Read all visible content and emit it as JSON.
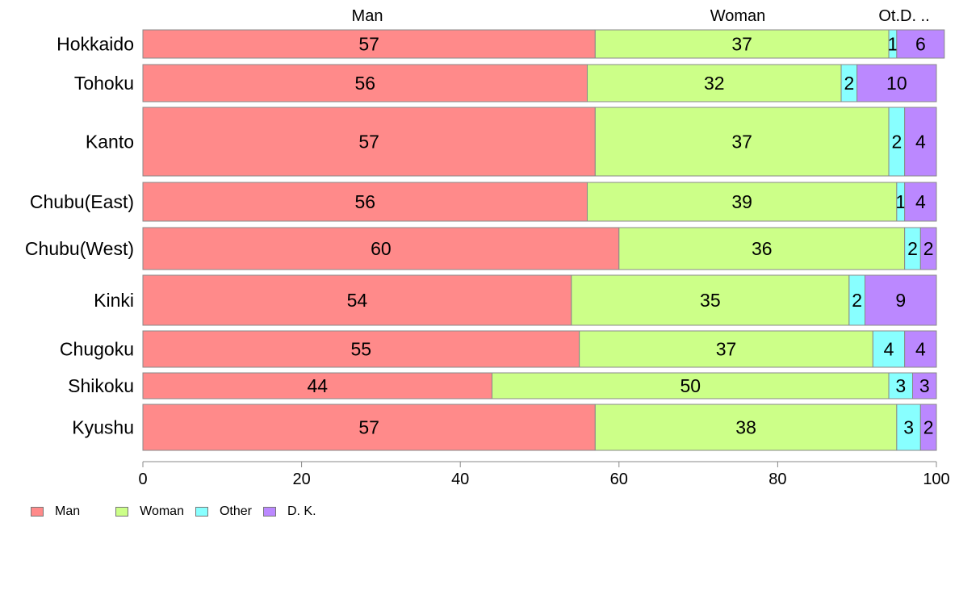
{
  "chart_data": {
    "type": "bar",
    "orientation": "horizontal",
    "stacked": true,
    "categories": [
      "Hokkaido",
      "Tohoku",
      "Kanto",
      "Chubu(East)",
      "Chubu(West)",
      "Kinki",
      "Chugoku",
      "Shikoku",
      "Kyushu"
    ],
    "series": [
      {
        "name": "Man",
        "color": "#ff8a8a",
        "values": [
          57,
          56,
          57,
          56,
          60,
          54,
          55,
          44,
          57
        ]
      },
      {
        "name": "Woman",
        "color": "#ccff88",
        "values": [
          37,
          32,
          37,
          39,
          36,
          35,
          37,
          50,
          38
        ]
      },
      {
        "name": "Other",
        "color": "#88ffff",
        "values": [
          1,
          2,
          2,
          1,
          2,
          2,
          4,
          3,
          3
        ]
      },
      {
        "name": "D. K.",
        "color": "#bb88ff",
        "values": [
          6,
          10,
          4,
          4,
          2,
          9,
          4,
          3,
          2
        ]
      }
    ],
    "top_labels": [
      "Man",
      "Woman",
      "Ot.D. .."
    ],
    "xlim": [
      0,
      100
    ],
    "xticks": [
      0,
      20,
      40,
      60,
      80,
      100
    ],
    "xlabel": "",
    "ylabel": "",
    "title": "",
    "legend_position": "bottom-left",
    "grid": false
  }
}
